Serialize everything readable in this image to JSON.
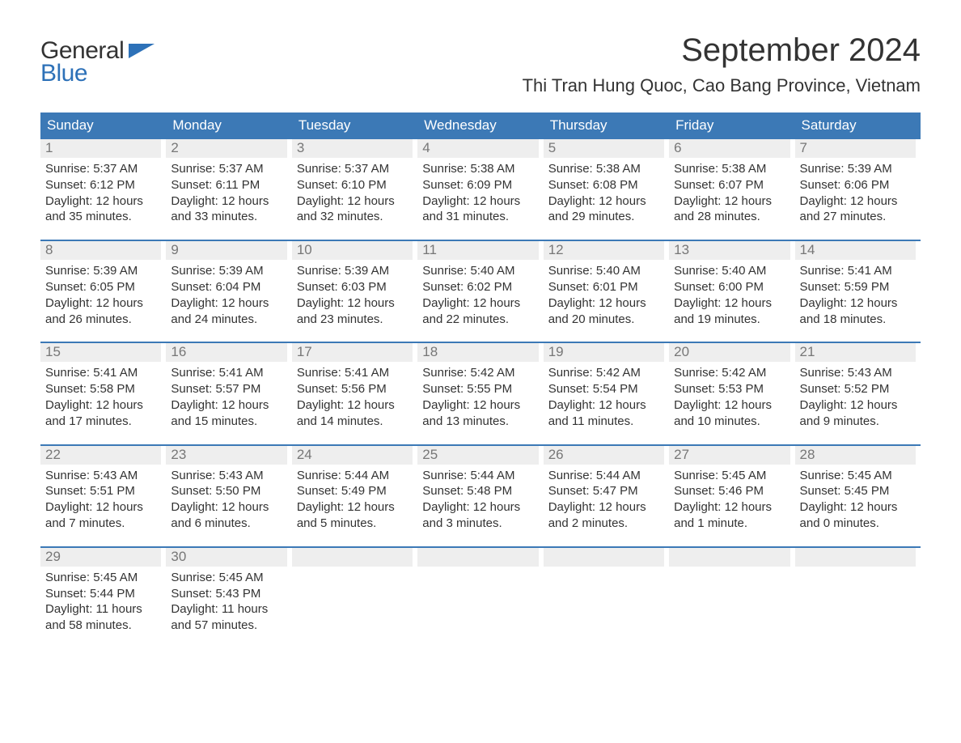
{
  "colors": {
    "header_bg": "#3c79b6",
    "header_text": "#ffffff",
    "daynum_bg": "#eeeeee",
    "daynum_text": "#777777",
    "body_text": "#333333",
    "accent_blue": "#2d71b8",
    "rule": "#3c79b6",
    "page_bg": "#ffffff"
  },
  "logo": {
    "line1": "General",
    "line2": "Blue"
  },
  "title": "September 2024",
  "location": "Thi Tran Hung Quoc, Cao Bang Province, Vietnam",
  "weekdays": [
    "Sunday",
    "Monday",
    "Tuesday",
    "Wednesday",
    "Thursday",
    "Friday",
    "Saturday"
  ],
  "days": [
    {
      "n": "1",
      "sunrise": "Sunrise: 5:37 AM",
      "sunset": "Sunset: 6:12 PM",
      "d1": "Daylight: 12 hours",
      "d2": "and 35 minutes."
    },
    {
      "n": "2",
      "sunrise": "Sunrise: 5:37 AM",
      "sunset": "Sunset: 6:11 PM",
      "d1": "Daylight: 12 hours",
      "d2": "and 33 minutes."
    },
    {
      "n": "3",
      "sunrise": "Sunrise: 5:37 AM",
      "sunset": "Sunset: 6:10 PM",
      "d1": "Daylight: 12 hours",
      "d2": "and 32 minutes."
    },
    {
      "n": "4",
      "sunrise": "Sunrise: 5:38 AM",
      "sunset": "Sunset: 6:09 PM",
      "d1": "Daylight: 12 hours",
      "d2": "and 31 minutes."
    },
    {
      "n": "5",
      "sunrise": "Sunrise: 5:38 AM",
      "sunset": "Sunset: 6:08 PM",
      "d1": "Daylight: 12 hours",
      "d2": "and 29 minutes."
    },
    {
      "n": "6",
      "sunrise": "Sunrise: 5:38 AM",
      "sunset": "Sunset: 6:07 PM",
      "d1": "Daylight: 12 hours",
      "d2": "and 28 minutes."
    },
    {
      "n": "7",
      "sunrise": "Sunrise: 5:39 AM",
      "sunset": "Sunset: 6:06 PM",
      "d1": "Daylight: 12 hours",
      "d2": "and 27 minutes."
    },
    {
      "n": "8",
      "sunrise": "Sunrise: 5:39 AM",
      "sunset": "Sunset: 6:05 PM",
      "d1": "Daylight: 12 hours",
      "d2": "and 26 minutes."
    },
    {
      "n": "9",
      "sunrise": "Sunrise: 5:39 AM",
      "sunset": "Sunset: 6:04 PM",
      "d1": "Daylight: 12 hours",
      "d2": "and 24 minutes."
    },
    {
      "n": "10",
      "sunrise": "Sunrise: 5:39 AM",
      "sunset": "Sunset: 6:03 PM",
      "d1": "Daylight: 12 hours",
      "d2": "and 23 minutes."
    },
    {
      "n": "11",
      "sunrise": "Sunrise: 5:40 AM",
      "sunset": "Sunset: 6:02 PM",
      "d1": "Daylight: 12 hours",
      "d2": "and 22 minutes."
    },
    {
      "n": "12",
      "sunrise": "Sunrise: 5:40 AM",
      "sunset": "Sunset: 6:01 PM",
      "d1": "Daylight: 12 hours",
      "d2": "and 20 minutes."
    },
    {
      "n": "13",
      "sunrise": "Sunrise: 5:40 AM",
      "sunset": "Sunset: 6:00 PM",
      "d1": "Daylight: 12 hours",
      "d2": "and 19 minutes."
    },
    {
      "n": "14",
      "sunrise": "Sunrise: 5:41 AM",
      "sunset": "Sunset: 5:59 PM",
      "d1": "Daylight: 12 hours",
      "d2": "and 18 minutes."
    },
    {
      "n": "15",
      "sunrise": "Sunrise: 5:41 AM",
      "sunset": "Sunset: 5:58 PM",
      "d1": "Daylight: 12 hours",
      "d2": "and 17 minutes."
    },
    {
      "n": "16",
      "sunrise": "Sunrise: 5:41 AM",
      "sunset": "Sunset: 5:57 PM",
      "d1": "Daylight: 12 hours",
      "d2": "and 15 minutes."
    },
    {
      "n": "17",
      "sunrise": "Sunrise: 5:41 AM",
      "sunset": "Sunset: 5:56 PM",
      "d1": "Daylight: 12 hours",
      "d2": "and 14 minutes."
    },
    {
      "n": "18",
      "sunrise": "Sunrise: 5:42 AM",
      "sunset": "Sunset: 5:55 PM",
      "d1": "Daylight: 12 hours",
      "d2": "and 13 minutes."
    },
    {
      "n": "19",
      "sunrise": "Sunrise: 5:42 AM",
      "sunset": "Sunset: 5:54 PM",
      "d1": "Daylight: 12 hours",
      "d2": "and 11 minutes."
    },
    {
      "n": "20",
      "sunrise": "Sunrise: 5:42 AM",
      "sunset": "Sunset: 5:53 PM",
      "d1": "Daylight: 12 hours",
      "d2": "and 10 minutes."
    },
    {
      "n": "21",
      "sunrise": "Sunrise: 5:43 AM",
      "sunset": "Sunset: 5:52 PM",
      "d1": "Daylight: 12 hours",
      "d2": "and 9 minutes."
    },
    {
      "n": "22",
      "sunrise": "Sunrise: 5:43 AM",
      "sunset": "Sunset: 5:51 PM",
      "d1": "Daylight: 12 hours",
      "d2": "and 7 minutes."
    },
    {
      "n": "23",
      "sunrise": "Sunrise: 5:43 AM",
      "sunset": "Sunset: 5:50 PM",
      "d1": "Daylight: 12 hours",
      "d2": "and 6 minutes."
    },
    {
      "n": "24",
      "sunrise": "Sunrise: 5:44 AM",
      "sunset": "Sunset: 5:49 PM",
      "d1": "Daylight: 12 hours",
      "d2": "and 5 minutes."
    },
    {
      "n": "25",
      "sunrise": "Sunrise: 5:44 AM",
      "sunset": "Sunset: 5:48 PM",
      "d1": "Daylight: 12 hours",
      "d2": "and 3 minutes."
    },
    {
      "n": "26",
      "sunrise": "Sunrise: 5:44 AM",
      "sunset": "Sunset: 5:47 PM",
      "d1": "Daylight: 12 hours",
      "d2": "and 2 minutes."
    },
    {
      "n": "27",
      "sunrise": "Sunrise: 5:45 AM",
      "sunset": "Sunset: 5:46 PM",
      "d1": "Daylight: 12 hours",
      "d2": "and 1 minute."
    },
    {
      "n": "28",
      "sunrise": "Sunrise: 5:45 AM",
      "sunset": "Sunset: 5:45 PM",
      "d1": "Daylight: 12 hours",
      "d2": "and 0 minutes."
    },
    {
      "n": "29",
      "sunrise": "Sunrise: 5:45 AM",
      "sunset": "Sunset: 5:44 PM",
      "d1": "Daylight: 11 hours",
      "d2": "and 58 minutes."
    },
    {
      "n": "30",
      "sunrise": "Sunrise: 5:45 AM",
      "sunset": "Sunset: 5:43 PM",
      "d1": "Daylight: 11 hours",
      "d2": "and 57 minutes."
    }
  ]
}
